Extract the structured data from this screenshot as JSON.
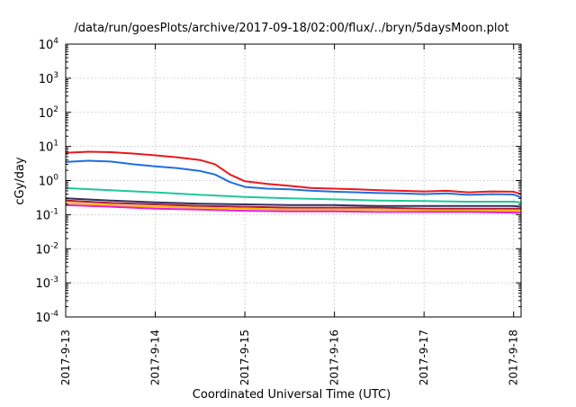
{
  "chart_data": {
    "type": "line",
    "title": "/data/run/goesPlots/archive/2017-09-18/02:00/flux/../bryn/5daysMoon.plot",
    "xlabel": "Coordinated Universal Time (UTC)",
    "ylabel": "cGy/day",
    "y_scale": "log",
    "ylim": [
      0.0001,
      10000
    ],
    "xlim": [
      "2017-09-13 00:00",
      "2017-09-18 02:00"
    ],
    "grid": true,
    "legend": "none",
    "y_ticks": [
      {
        "base": "10",
        "exp": "-4"
      },
      {
        "base": "10",
        "exp": "-3"
      },
      {
        "base": "10",
        "exp": "-2"
      },
      {
        "base": "10",
        "exp": "-1"
      },
      {
        "base": "10",
        "exp": "0"
      },
      {
        "base": "10",
        "exp": "1"
      },
      {
        "base": "10",
        "exp": "2"
      },
      {
        "base": "10",
        "exp": "3"
      },
      {
        "base": "10",
        "exp": "4"
      }
    ],
    "x_ticks": [
      "2017-9-13",
      "2017-9-14",
      "2017-9-15",
      "2017-9-16",
      "2017-9-17",
      "2017-9-18"
    ],
    "series": [
      {
        "color": "#e8191c",
        "x": [
          "2017-09-13 00:00",
          "2017-09-13 06:00",
          "2017-09-13 12:00",
          "2017-09-13 18:00",
          "2017-09-14 00:00",
          "2017-09-14 06:00",
          "2017-09-14 12:00",
          "2017-09-14 16:00",
          "2017-09-14 20:00",
          "2017-09-15 00:00",
          "2017-09-15 06:00",
          "2017-09-15 12:00",
          "2017-09-15 18:00",
          "2017-09-16 00:00",
          "2017-09-16 06:00",
          "2017-09-16 12:00",
          "2017-09-16 18:00",
          "2017-09-17 00:00",
          "2017-09-17 06:00",
          "2017-09-17 12:00",
          "2017-09-17 18:00",
          "2017-09-18 00:00",
          "2017-09-18 02:00"
        ],
        "y": [
          6.5,
          7.0,
          6.8,
          6.2,
          5.5,
          4.8,
          4.0,
          3.0,
          1.5,
          0.95,
          0.8,
          0.7,
          0.6,
          0.58,
          0.55,
          0.52,
          0.5,
          0.48,
          0.5,
          0.45,
          0.48,
          0.47,
          0.4
        ]
      },
      {
        "color": "#1f6fe0",
        "x": [
          "2017-09-13 00:00",
          "2017-09-13 06:00",
          "2017-09-13 12:00",
          "2017-09-13 18:00",
          "2017-09-14 00:00",
          "2017-09-14 06:00",
          "2017-09-14 12:00",
          "2017-09-14 16:00",
          "2017-09-14 20:00",
          "2017-09-15 00:00",
          "2017-09-15 06:00",
          "2017-09-15 12:00",
          "2017-09-15 18:00",
          "2017-09-16 00:00",
          "2017-09-16 06:00",
          "2017-09-16 12:00",
          "2017-09-16 18:00",
          "2017-09-17 00:00",
          "2017-09-17 06:00",
          "2017-09-17 12:00",
          "2017-09-17 18:00",
          "2017-09-18 00:00",
          "2017-09-18 02:00"
        ],
        "y": [
          3.5,
          3.8,
          3.6,
          3.0,
          2.6,
          2.3,
          1.9,
          1.5,
          0.9,
          0.65,
          0.58,
          0.55,
          0.5,
          0.47,
          0.45,
          0.43,
          0.42,
          0.4,
          0.42,
          0.38,
          0.4,
          0.39,
          0.32
        ]
      },
      {
        "color": "#1fc89a",
        "x": [
          "2017-09-13 00:00",
          "2017-09-13 12:00",
          "2017-09-14 00:00",
          "2017-09-14 12:00",
          "2017-09-15 00:00",
          "2017-09-15 12:00",
          "2017-09-16 00:00",
          "2017-09-16 12:00",
          "2017-09-17 00:00",
          "2017-09-17 12:00",
          "2017-09-18 00:00",
          "2017-09-18 02:00"
        ],
        "y": [
          0.6,
          0.52,
          0.45,
          0.38,
          0.33,
          0.3,
          0.28,
          0.26,
          0.25,
          0.24,
          0.24,
          0.23
        ]
      },
      {
        "color": "#303060",
        "x": [
          "2017-09-13 00:00",
          "2017-09-13 12:00",
          "2017-09-14 00:00",
          "2017-09-14 12:00",
          "2017-09-15 00:00",
          "2017-09-15 12:00",
          "2017-09-16 00:00",
          "2017-09-16 12:00",
          "2017-09-17 00:00",
          "2017-09-17 12:00",
          "2017-09-18 00:00",
          "2017-09-18 02:00"
        ],
        "y": [
          0.3,
          0.26,
          0.23,
          0.21,
          0.2,
          0.19,
          0.19,
          0.18,
          0.18,
          0.18,
          0.18,
          0.17
        ]
      },
      {
        "color": "#b01838",
        "x": [
          "2017-09-13 00:00",
          "2017-09-13 12:00",
          "2017-09-14 00:00",
          "2017-09-14 12:00",
          "2017-09-15 00:00",
          "2017-09-15 12:00",
          "2017-09-16 00:00",
          "2017-09-16 12:00",
          "2017-09-17 00:00",
          "2017-09-17 12:00",
          "2017-09-18 00:00",
          "2017-09-18 02:00"
        ],
        "y": [
          0.26,
          0.22,
          0.2,
          0.18,
          0.17,
          0.16,
          0.16,
          0.16,
          0.15,
          0.15,
          0.15,
          0.15
        ]
      },
      {
        "color": "#f2b800",
        "x": [
          "2017-09-13 00:00",
          "2017-09-13 12:00",
          "2017-09-14 00:00",
          "2017-09-14 12:00",
          "2017-09-15 00:00",
          "2017-09-15 12:00",
          "2017-09-16 00:00",
          "2017-09-16 12:00",
          "2017-09-17 00:00",
          "2017-09-17 12:00",
          "2017-09-18 00:00",
          "2017-09-18 02:00"
        ],
        "y": [
          0.22,
          0.19,
          0.17,
          0.16,
          0.15,
          0.14,
          0.14,
          0.14,
          0.135,
          0.13,
          0.13,
          0.13
        ]
      },
      {
        "color": "#e81ed8",
        "x": [
          "2017-09-13 00:00",
          "2017-09-13 12:00",
          "2017-09-14 00:00",
          "2017-09-14 12:00",
          "2017-09-15 00:00",
          "2017-09-15 12:00",
          "2017-09-16 00:00",
          "2017-09-16 12:00",
          "2017-09-17 00:00",
          "2017-09-17 12:00",
          "2017-09-18 00:00",
          "2017-09-18 02:00"
        ],
        "y": [
          0.19,
          0.17,
          0.15,
          0.14,
          0.13,
          0.125,
          0.125,
          0.12,
          0.12,
          0.12,
          0.115,
          0.115
        ]
      }
    ]
  }
}
